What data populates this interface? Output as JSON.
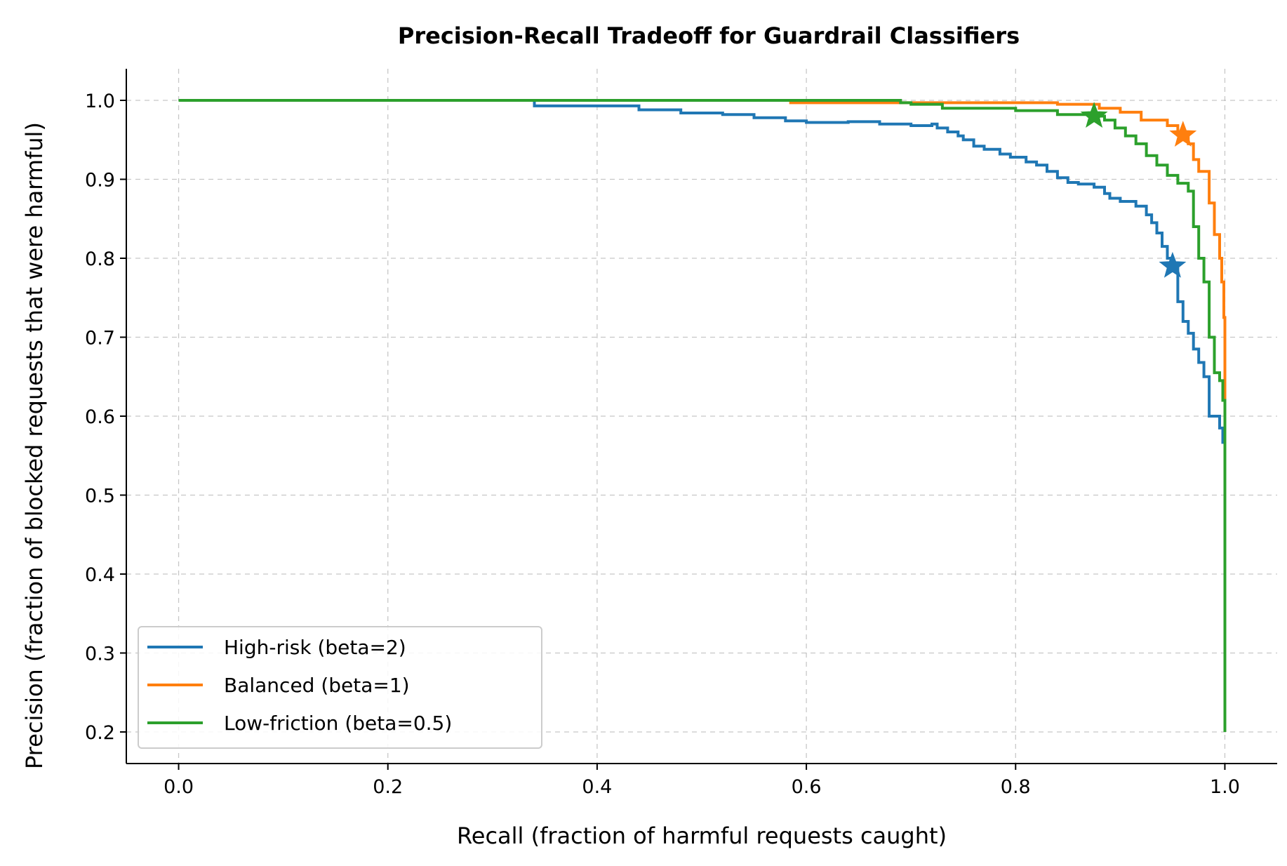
{
  "chart_data": {
    "type": "line",
    "title": "Precision-Recall Tradeoff for Guardrail Classifiers",
    "xlabel": "Recall (fraction of harmful requests caught)",
    "ylabel": "Precision (fraction of blocked requests that were harmful)",
    "xlim": [
      -0.05,
      1.05
    ],
    "ylim": [
      0.16,
      1.04
    ],
    "xticks": [
      0.0,
      0.2,
      0.4,
      0.6,
      0.8,
      1.0
    ],
    "xtick_labels": [
      "0.0",
      "0.2",
      "0.4",
      "0.6",
      "0.8",
      "1.0"
    ],
    "yticks": [
      0.2,
      0.3,
      0.4,
      0.5,
      0.6,
      0.7,
      0.8,
      0.9,
      1.0
    ],
    "ytick_labels": [
      "0.2",
      "0.3",
      "0.4",
      "0.5",
      "0.6",
      "0.7",
      "0.8",
      "0.9",
      "1.0"
    ],
    "grid": true,
    "legend_position": "lower-left",
    "series": [
      {
        "name": "High-risk (beta=2)",
        "color": "#1f77b4",
        "step": true,
        "marker": {
          "x": 0.95,
          "y": 0.79,
          "symbol": "star"
        },
        "points": [
          [
            0.0,
            1.0
          ],
          [
            0.34,
            1.0
          ],
          [
            0.34,
            0.993
          ],
          [
            0.44,
            0.993
          ],
          [
            0.44,
            0.988
          ],
          [
            0.48,
            0.988
          ],
          [
            0.48,
            0.984
          ],
          [
            0.52,
            0.984
          ],
          [
            0.52,
            0.982
          ],
          [
            0.55,
            0.982
          ],
          [
            0.55,
            0.978
          ],
          [
            0.58,
            0.978
          ],
          [
            0.58,
            0.974
          ],
          [
            0.6,
            0.974
          ],
          [
            0.6,
            0.972
          ],
          [
            0.64,
            0.972
          ],
          [
            0.64,
            0.973
          ],
          [
            0.67,
            0.973
          ],
          [
            0.67,
            0.97
          ],
          [
            0.7,
            0.97
          ],
          [
            0.7,
            0.968
          ],
          [
            0.72,
            0.968
          ],
          [
            0.72,
            0.97
          ],
          [
            0.725,
            0.97
          ],
          [
            0.725,
            0.965
          ],
          [
            0.735,
            0.965
          ],
          [
            0.735,
            0.96
          ],
          [
            0.745,
            0.96
          ],
          [
            0.745,
            0.955
          ],
          [
            0.75,
            0.955
          ],
          [
            0.75,
            0.95
          ],
          [
            0.76,
            0.95
          ],
          [
            0.76,
            0.942
          ],
          [
            0.77,
            0.942
          ],
          [
            0.77,
            0.938
          ],
          [
            0.785,
            0.938
          ],
          [
            0.785,
            0.932
          ],
          [
            0.795,
            0.932
          ],
          [
            0.795,
            0.928
          ],
          [
            0.81,
            0.928
          ],
          [
            0.81,
            0.922
          ],
          [
            0.82,
            0.922
          ],
          [
            0.82,
            0.918
          ],
          [
            0.83,
            0.918
          ],
          [
            0.83,
            0.91
          ],
          [
            0.84,
            0.91
          ],
          [
            0.84,
            0.902
          ],
          [
            0.85,
            0.902
          ],
          [
            0.85,
            0.896
          ],
          [
            0.86,
            0.896
          ],
          [
            0.86,
            0.894
          ],
          [
            0.875,
            0.894
          ],
          [
            0.875,
            0.89
          ],
          [
            0.885,
            0.89
          ],
          [
            0.885,
            0.882
          ],
          [
            0.89,
            0.882
          ],
          [
            0.89,
            0.876
          ],
          [
            0.9,
            0.876
          ],
          [
            0.9,
            0.874
          ],
          [
            0.9,
            0.872
          ],
          [
            0.915,
            0.872
          ],
          [
            0.915,
            0.866
          ],
          [
            0.925,
            0.866
          ],
          [
            0.925,
            0.855
          ],
          [
            0.93,
            0.855
          ],
          [
            0.93,
            0.845
          ],
          [
            0.935,
            0.845
          ],
          [
            0.935,
            0.832
          ],
          [
            0.94,
            0.832
          ],
          [
            0.94,
            0.815
          ],
          [
            0.945,
            0.815
          ],
          [
            0.945,
            0.8
          ],
          [
            0.95,
            0.8
          ],
          [
            0.95,
            0.79
          ],
          [
            0.955,
            0.79
          ],
          [
            0.955,
            0.745
          ],
          [
            0.96,
            0.745
          ],
          [
            0.96,
            0.72
          ],
          [
            0.965,
            0.72
          ],
          [
            0.965,
            0.705
          ],
          [
            0.97,
            0.705
          ],
          [
            0.97,
            0.685
          ],
          [
            0.975,
            0.685
          ],
          [
            0.975,
            0.668
          ],
          [
            0.98,
            0.668
          ],
          [
            0.98,
            0.65
          ],
          [
            0.985,
            0.65
          ],
          [
            0.985,
            0.6
          ],
          [
            0.995,
            0.6
          ],
          [
            0.995,
            0.585
          ],
          [
            0.998,
            0.585
          ],
          [
            0.998,
            0.565
          ]
        ]
      },
      {
        "name": "Balanced (beta=1)",
        "color": "#ff7f0e",
        "step": true,
        "marker": {
          "x": 0.96,
          "y": 0.956,
          "symbol": "star"
        },
        "points": [
          [
            0.0,
            1.0
          ],
          [
            0.585,
            1.0
          ],
          [
            0.585,
            0.997
          ],
          [
            0.84,
            0.997
          ],
          [
            0.84,
            0.995
          ],
          [
            0.88,
            0.995
          ],
          [
            0.88,
            0.99
          ],
          [
            0.9,
            0.99
          ],
          [
            0.9,
            0.985
          ],
          [
            0.92,
            0.985
          ],
          [
            0.92,
            0.975
          ],
          [
            0.945,
            0.975
          ],
          [
            0.945,
            0.968
          ],
          [
            0.955,
            0.968
          ],
          [
            0.955,
            0.956
          ],
          [
            0.965,
            0.956
          ],
          [
            0.965,
            0.945
          ],
          [
            0.97,
            0.945
          ],
          [
            0.97,
            0.925
          ],
          [
            0.975,
            0.925
          ],
          [
            0.975,
            0.91
          ],
          [
            0.985,
            0.91
          ],
          [
            0.985,
            0.87
          ],
          [
            0.99,
            0.87
          ],
          [
            0.99,
            0.83
          ],
          [
            0.995,
            0.83
          ],
          [
            0.995,
            0.8
          ],
          [
            0.997,
            0.8
          ],
          [
            0.997,
            0.77
          ],
          [
            0.999,
            0.77
          ],
          [
            0.999,
            0.725
          ],
          [
            1.0,
            0.725
          ],
          [
            1.0,
            0.62
          ]
        ]
      },
      {
        "name": "Low-friction (beta=0.5)",
        "color": "#2ca02c",
        "step": true,
        "marker": {
          "x": 0.875,
          "y": 0.98,
          "symbol": "star"
        },
        "points": [
          [
            0.0,
            1.0
          ],
          [
            0.69,
            1.0
          ],
          [
            0.69,
            0.997
          ],
          [
            0.7,
            0.997
          ],
          [
            0.7,
            0.995
          ],
          [
            0.73,
            0.995
          ],
          [
            0.73,
            0.99
          ],
          [
            0.8,
            0.99
          ],
          [
            0.8,
            0.987
          ],
          [
            0.84,
            0.987
          ],
          [
            0.84,
            0.982
          ],
          [
            0.87,
            0.982
          ],
          [
            0.87,
            0.98
          ],
          [
            0.885,
            0.98
          ],
          [
            0.885,
            0.975
          ],
          [
            0.895,
            0.975
          ],
          [
            0.895,
            0.965
          ],
          [
            0.905,
            0.965
          ],
          [
            0.905,
            0.955
          ],
          [
            0.915,
            0.955
          ],
          [
            0.915,
            0.945
          ],
          [
            0.925,
            0.945
          ],
          [
            0.925,
            0.93
          ],
          [
            0.935,
            0.93
          ],
          [
            0.935,
            0.918
          ],
          [
            0.945,
            0.918
          ],
          [
            0.945,
            0.905
          ],
          [
            0.955,
            0.905
          ],
          [
            0.955,
            0.895
          ],
          [
            0.965,
            0.895
          ],
          [
            0.965,
            0.885
          ],
          [
            0.97,
            0.885
          ],
          [
            0.97,
            0.84
          ],
          [
            0.975,
            0.84
          ],
          [
            0.975,
            0.8
          ],
          [
            0.98,
            0.8
          ],
          [
            0.98,
            0.77
          ],
          [
            0.985,
            0.77
          ],
          [
            0.985,
            0.7
          ],
          [
            0.99,
            0.7
          ],
          [
            0.99,
            0.655
          ],
          [
            0.995,
            0.655
          ],
          [
            0.995,
            0.645
          ],
          [
            0.998,
            0.645
          ],
          [
            0.998,
            0.62
          ],
          [
            1.0,
            0.62
          ],
          [
            1.0,
            0.2
          ]
        ]
      }
    ]
  }
}
